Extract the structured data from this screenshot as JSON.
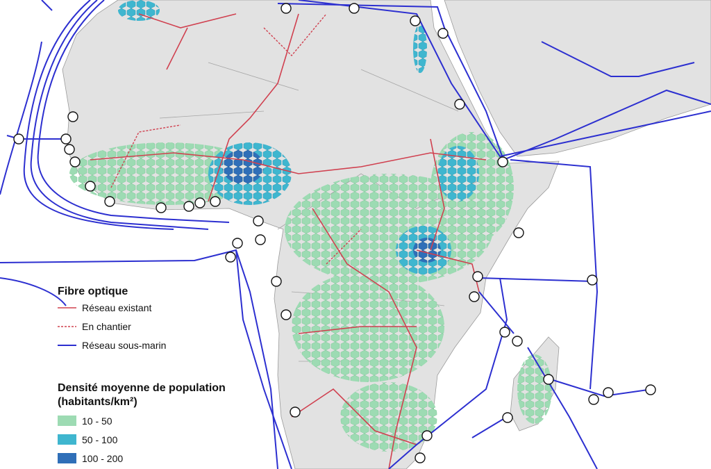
{
  "legend": {
    "fiber_title": "Fibre optique",
    "fiber_items": [
      "Réseau existant",
      "En chantier",
      "Réseau sous-marin"
    ],
    "density_title": "Densité moyenne de population",
    "density_unit": "(habitants/km²)",
    "density_items": [
      "10 - 50",
      "50 - 100",
      "100 - 200"
    ]
  }
}
